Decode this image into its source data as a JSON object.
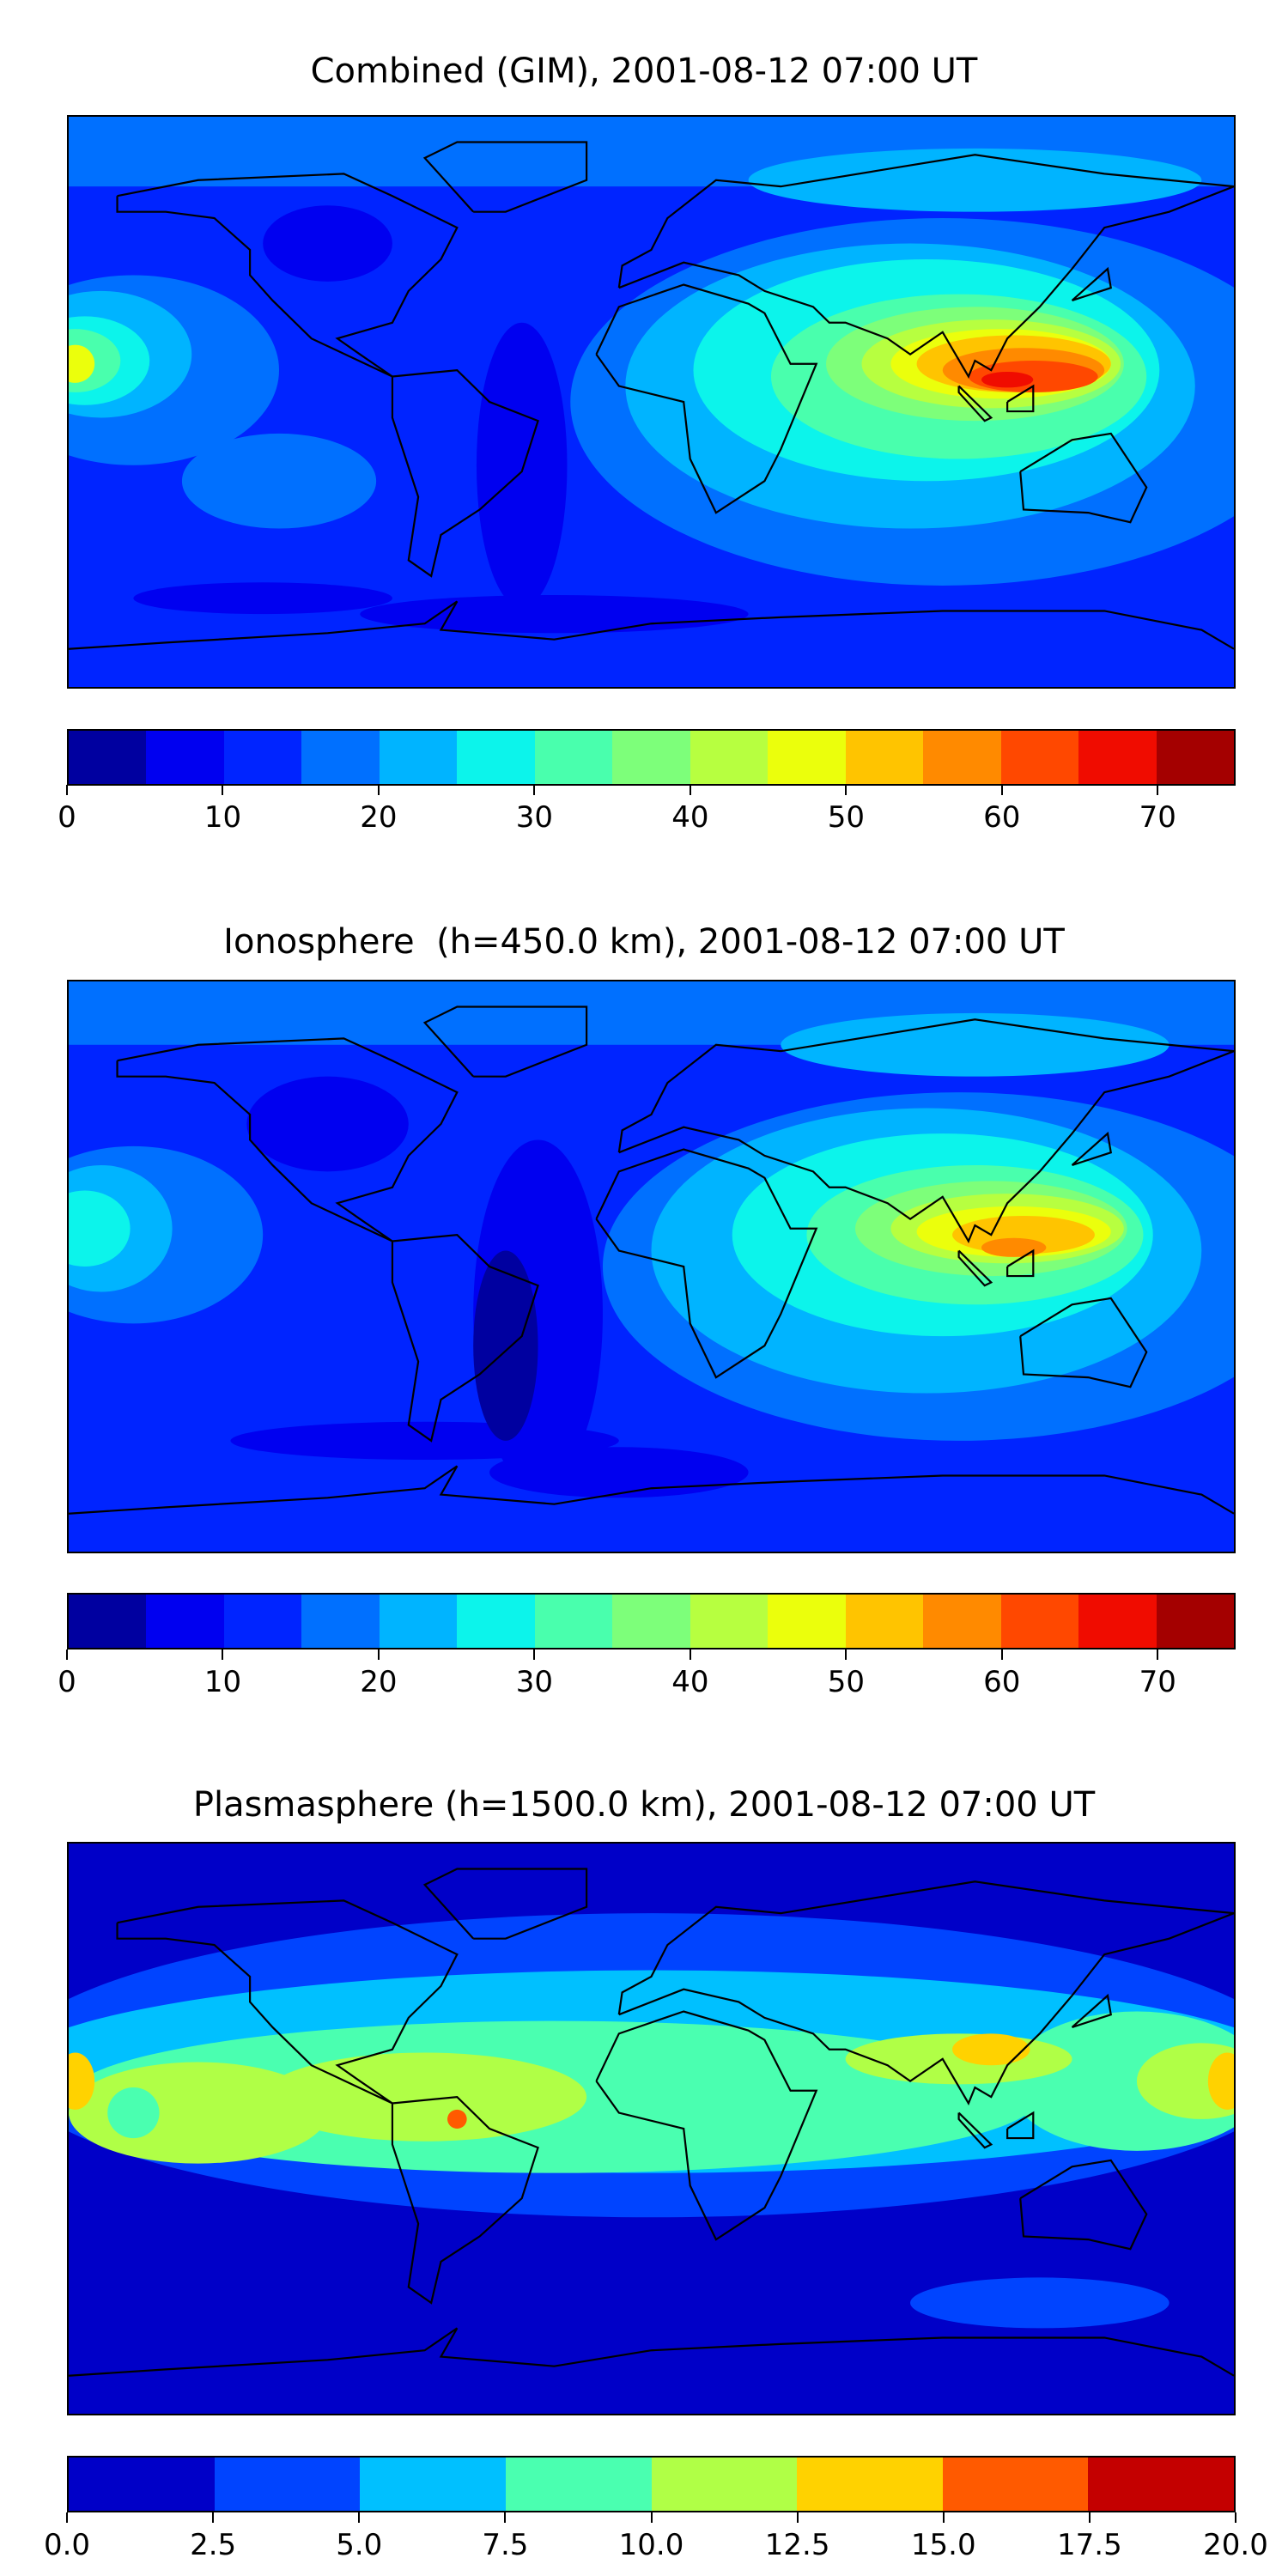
{
  "panels": [
    {
      "title": "Combined (GIM), 2001-08-12 07:00 UT",
      "colorbar": {
        "levels": [
          0,
          5,
          10,
          15,
          20,
          25,
          30,
          35,
          40,
          45,
          50,
          55,
          60,
          65,
          70,
          75
        ],
        "colors": [
          "#0000a0",
          "#0000f0",
          "#0024ff",
          "#0070ff",
          "#00b4ff",
          "#0cf4eb",
          "#49ffad",
          "#7dff7a",
          "#b7ff40",
          "#ebff0c",
          "#ffc400",
          "#ff8a00",
          "#ff4800",
          "#f00c00",
          "#a40000"
        ],
        "tick_values": [
          0,
          10,
          20,
          30,
          40,
          50,
          60,
          70
        ],
        "tick_labels": [
          "0",
          "10",
          "20",
          "30",
          "40",
          "50",
          "60",
          "70"
        ],
        "range": [
          0,
          75
        ]
      }
    },
    {
      "title": "Ionosphere  (h=450.0 km), 2001-08-12 07:00 UT",
      "colorbar": {
        "levels": [
          0,
          5,
          10,
          15,
          20,
          25,
          30,
          35,
          40,
          45,
          50,
          55,
          60,
          65,
          70,
          75
        ],
        "colors": [
          "#0000a0",
          "#0000f0",
          "#0024ff",
          "#0070ff",
          "#00b4ff",
          "#0cf4eb",
          "#49ffad",
          "#7dff7a",
          "#b7ff40",
          "#ebff0c",
          "#ffc400",
          "#ff8a00",
          "#ff4800",
          "#f00c00",
          "#a40000"
        ],
        "tick_values": [
          0,
          10,
          20,
          30,
          40,
          50,
          60,
          70
        ],
        "tick_labels": [
          "0",
          "10",
          "20",
          "30",
          "40",
          "50",
          "60",
          "70"
        ],
        "range": [
          0,
          75
        ]
      }
    },
    {
      "title": "Plasmasphere (h=1500.0 km), 2001-08-12 07:00 UT",
      "colorbar": {
        "levels": [
          0,
          2.5,
          5,
          7.5,
          10,
          12.5,
          15,
          17.5,
          20
        ],
        "colors": [
          "#0000c8",
          "#0044ff",
          "#00c0ff",
          "#4affb0",
          "#b0ff46",
          "#ffd200",
          "#ff5a00",
          "#c40000"
        ],
        "tick_values": [
          0,
          2.5,
          5,
          7.5,
          10,
          12.5,
          15,
          17.5,
          20
        ],
        "tick_labels": [
          "0.0",
          "2.5",
          "5.0",
          "7.5",
          "10.0",
          "12.5",
          "15.0",
          "17.5",
          "20.0"
        ],
        "range": [
          0,
          20
        ]
      }
    }
  ],
  "chart_data": {
    "type": "heatmap",
    "projection": "equirectangular",
    "lon_range": [
      -180,
      180
    ],
    "lat_range": [
      -90,
      90
    ],
    "maps": [
      {
        "title": "Combined (GIM), 2001-08-12 07:00 UT",
        "colorbar_range": [
          0,
          75
        ],
        "max_region": "Southeast Asia / Indonesia",
        "max_level": [
          65,
          70
        ]
      },
      {
        "title": "Ionosphere  (h=450.0 km), 2001-08-12 07:00 UT",
        "colorbar_range": [
          0,
          75
        ],
        "max_region": "Southeast Asia / Indonesia",
        "max_level": [
          55,
          60
        ]
      },
      {
        "title": "Plasmasphere (h=1500.0 km), 2001-08-12 07:00 UT",
        "colorbar_range": [
          0,
          20
        ],
        "max_region": "equatorial band",
        "max_level": [
          12.5,
          15
        ]
      }
    ]
  }
}
